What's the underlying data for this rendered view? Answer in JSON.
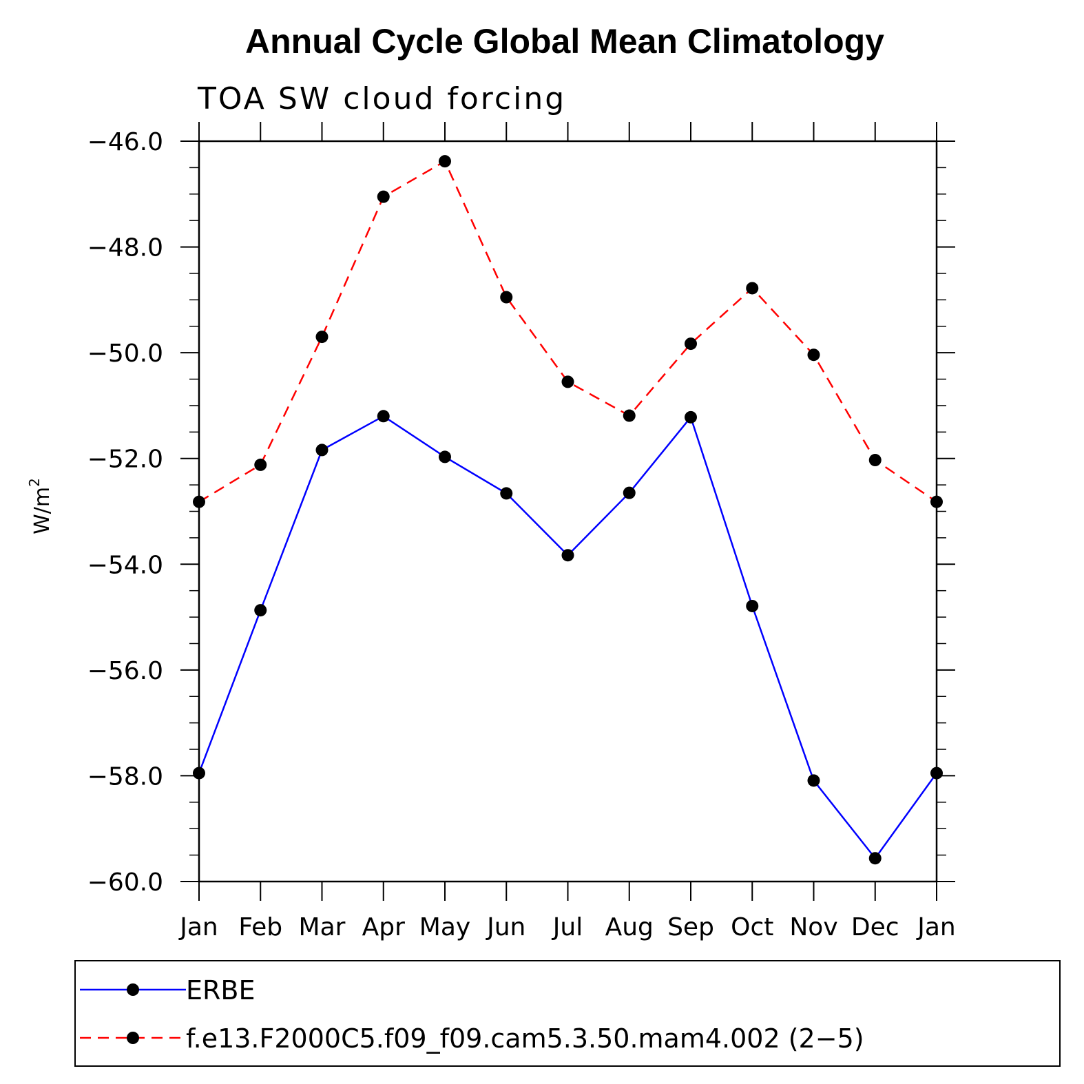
{
  "chart_data": {
    "type": "line",
    "title": "Annual Cycle Global Mean Climatology",
    "subtitle": "TOA SW cloud forcing",
    "ylabel_base": "W/m",
    "ylabel_sup": "2",
    "xlabel": "",
    "categories": [
      "Jan",
      "Feb",
      "Mar",
      "Apr",
      "May",
      "Jun",
      "Jul",
      "Aug",
      "Sep",
      "Oct",
      "Nov",
      "Dec",
      "Jan"
    ],
    "ylim": [
      -60.0,
      -46.0
    ],
    "yticks": [
      -46.0,
      -48.0,
      -50.0,
      -52.0,
      -54.0,
      -56.0,
      -58.0,
      -60.0
    ],
    "ytick_labels": [
      "−46.0",
      "−48.0",
      "−50.0",
      "−52.0",
      "−54.0",
      "−56.0",
      "−58.0",
      "−60.0"
    ],
    "grid": false,
    "legend_position": "bottom",
    "series": [
      {
        "name": "ERBE",
        "color": "#0000ff",
        "dash": "solid",
        "marker": "filled-circle",
        "values": [
          -57.95,
          -54.87,
          -51.84,
          -51.2,
          -51.97,
          -52.66,
          -53.83,
          -52.65,
          -51.22,
          -54.79,
          -58.09,
          -59.56,
          -57.95
        ]
      },
      {
        "name": "f.e13.F2000C5.f09_f09.cam5.3.50.mam4.002 (2−5)",
        "color": "#ff0000",
        "dash": "dashed",
        "marker": "filled-circle",
        "values": [
          -52.82,
          -52.12,
          -49.7,
          -47.05,
          -46.38,
          -48.95,
          -50.55,
          -51.19,
          -49.83,
          -48.78,
          -50.04,
          -52.03,
          -52.82
        ]
      }
    ]
  }
}
